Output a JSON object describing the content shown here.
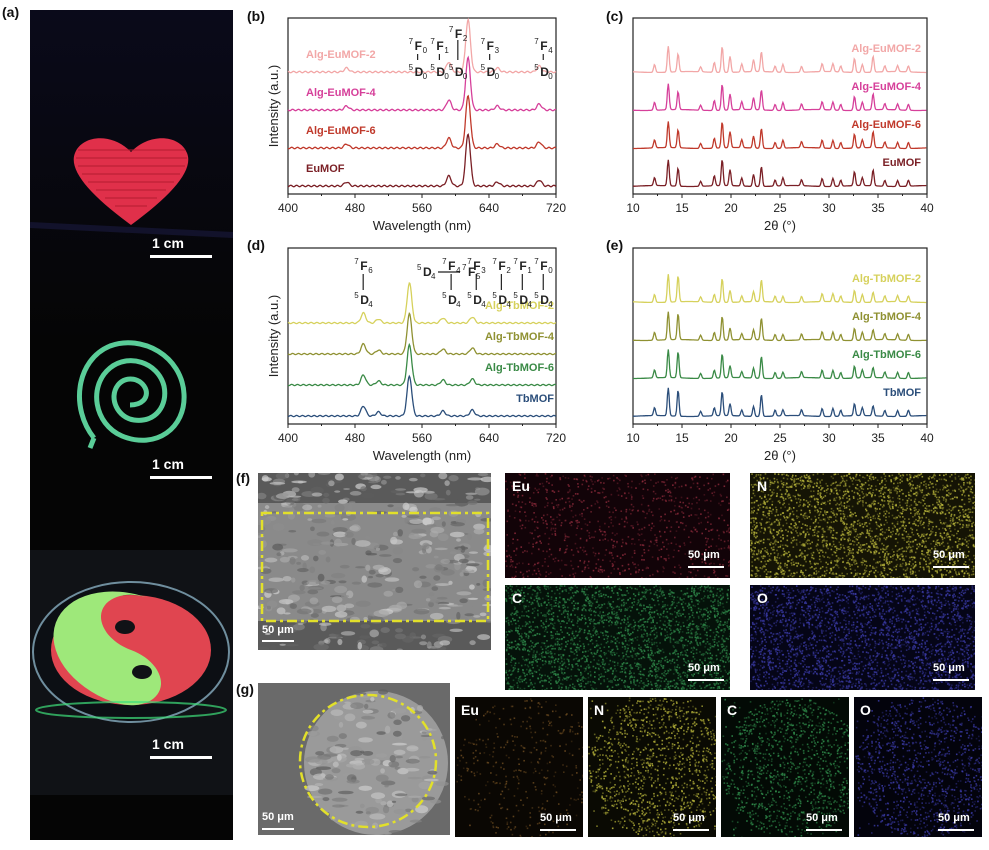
{
  "panels": {
    "a": "(a)",
    "b": "(b)",
    "c": "(c)",
    "d": "(d)",
    "e": "(e)",
    "f": "(f)",
    "g": "(g)"
  },
  "photo_a": {
    "scale_labels": [
      "1 cm",
      "1 cm",
      "1 cm"
    ]
  },
  "chart_data": [
    {
      "id": "b",
      "type": "line",
      "xlabel": "Wavelength (nm)",
      "ylabel": "Intensity (a.u.)",
      "xlim": [
        400,
        720
      ],
      "xticks": [
        400,
        480,
        560,
        640,
        720
      ],
      "series": [
        {
          "name": "Alg-EuMOF-2",
          "color": "#f2a7a7"
        },
        {
          "name": "Alg-EuMOF-4",
          "color": "#d6409a"
        },
        {
          "name": "Alg-EuMOF-6",
          "color": "#c0392b"
        },
        {
          "name": "EuMOF",
          "color": "#7a1f25"
        }
      ],
      "peaks_nm": [
        470,
        592,
        615,
        650,
        700
      ],
      "transitions": [
        {
          "upper": "7",
          "upper_sub": "F",
          "upper_idx": "0",
          "lower": "5",
          "lower_sub": "D",
          "lower_idx": "0"
        },
        {
          "upper": "7",
          "upper_sub": "F",
          "upper_idx": "1",
          "lower": "5",
          "lower_sub": "D",
          "lower_idx": "0"
        },
        {
          "upper": "7",
          "upper_sub": "F",
          "upper_idx": "2",
          "lower": "5",
          "lower_sub": "D",
          "lower_idx": "0"
        },
        {
          "upper": "7",
          "upper_sub": "F",
          "upper_idx": "3",
          "lower": "5",
          "lower_sub": "D",
          "lower_idx": "0"
        },
        {
          "upper": "7",
          "upper_sub": "F",
          "upper_idx": "4",
          "lower": "5",
          "lower_sub": "D",
          "lower_idx": "0"
        }
      ]
    },
    {
      "id": "c",
      "type": "line",
      "xlabel": "2θ (°)",
      "ylabel": "",
      "xlim": [
        10,
        40
      ],
      "xticks": [
        10,
        15,
        20,
        25,
        30,
        35,
        40
      ],
      "series": [
        {
          "name": "Alg-EuMOF-2",
          "color": "#f2a7a7"
        },
        {
          "name": "Alg-EuMOF-4",
          "color": "#d6409a"
        },
        {
          "name": "Alg-EuMOF-6",
          "color": "#c0392b"
        },
        {
          "name": "EuMOF",
          "color": "#7a1f25"
        }
      ],
      "peaks_deg": [
        12.2,
        13.6,
        14.6,
        16.9,
        18.3,
        19.1,
        19.9,
        21.1,
        22.3,
        23.1,
        24.5,
        25.3,
        27.2,
        29.3,
        30.4,
        31.2,
        32.6,
        33.4,
        34.5,
        35.7,
        37.0,
        38.1
      ]
    },
    {
      "id": "d",
      "type": "line",
      "xlabel": "Wavelength (nm)",
      "ylabel": "Intensity (a.u.)",
      "xlim": [
        400,
        720
      ],
      "xticks": [
        400,
        480,
        560,
        640,
        720
      ],
      "series": [
        {
          "name": "Alg-TbMOF-2",
          "color": "#d6d15c"
        },
        {
          "name": "Alg-TbMOF-4",
          "color": "#8f9132"
        },
        {
          "name": "Alg-TbMOF-6",
          "color": "#3a8a46"
        },
        {
          "name": "TbMOF",
          "color": "#2b4e7a"
        }
      ],
      "peaks_nm": [
        490,
        545,
        585,
        620
      ],
      "transitions": [
        {
          "upper": "7",
          "upper_sub": "F",
          "upper_idx": "6",
          "lower": "5",
          "lower_sub": "D",
          "lower_idx": "4"
        },
        {
          "upper": "5",
          "upper_sub": "D",
          "upper_idx": "4",
          "lower": "7",
          "lower_sub": "F",
          "lower_idx": "5"
        },
        {
          "upper": "7",
          "upper_sub": "F",
          "upper_idx": "4",
          "lower": "5",
          "lower_sub": "D",
          "lower_idx": "4"
        },
        {
          "upper": "7",
          "upper_sub": "F",
          "upper_idx": "3",
          "lower": "5",
          "lower_sub": "D",
          "lower_idx": "4"
        },
        {
          "upper": "7",
          "upper_sub": "F",
          "upper_idx": "2",
          "lower": "5",
          "lower_sub": "D",
          "lower_idx": "4"
        },
        {
          "upper": "7",
          "upper_sub": "F",
          "upper_idx": "1",
          "lower": "5",
          "lower_sub": "D",
          "lower_idx": "4"
        },
        {
          "upper": "7",
          "upper_sub": "F",
          "upper_idx": "0",
          "lower": "5",
          "lower_sub": "D",
          "lower_idx": "4"
        }
      ]
    },
    {
      "id": "e",
      "type": "line",
      "xlabel": "2θ (°)",
      "ylabel": "",
      "xlim": [
        10,
        40
      ],
      "xticks": [
        10,
        15,
        20,
        25,
        30,
        35,
        40
      ],
      "series": [
        {
          "name": "Alg-TbMOF-2",
          "color": "#d6d15c"
        },
        {
          "name": "Alg-TbMOF-4",
          "color": "#8f9132"
        },
        {
          "name": "Alg-TbMOF-6",
          "color": "#3a8a46"
        },
        {
          "name": "TbMOF",
          "color": "#2b4e7a"
        }
      ],
      "peaks_deg": [
        12.2,
        13.6,
        14.6,
        16.9,
        18.3,
        19.1,
        19.9,
        21.1,
        22.3,
        23.1,
        24.5,
        25.3,
        27.2,
        29.3,
        30.4,
        31.2,
        32.6,
        33.4,
        34.5,
        35.7,
        37.0,
        38.1
      ]
    }
  ],
  "maps_f": [
    {
      "label": "Eu",
      "scale": "50 μm",
      "color": "#8a2a3a"
    },
    {
      "label": "N",
      "scale": "50 μm",
      "color": "#b5b23a"
    },
    {
      "label": "C",
      "scale": "50 μm",
      "color": "#2f8a4a"
    },
    {
      "label": "O",
      "scale": "50 μm",
      "color": "#3a3aa5"
    }
  ],
  "sem_f_scale": "50 μm",
  "maps_g": [
    {
      "label": "Eu",
      "scale": "50 μm",
      "color": "#6a4a20"
    },
    {
      "label": "N",
      "scale": "50 μm",
      "color": "#b5b23a"
    },
    {
      "label": "C",
      "scale": "50 μm",
      "color": "#2f8a4a"
    },
    {
      "label": "O",
      "scale": "50 μm",
      "color": "#3a3aa5"
    }
  ],
  "sem_g_scale": "50 μm"
}
